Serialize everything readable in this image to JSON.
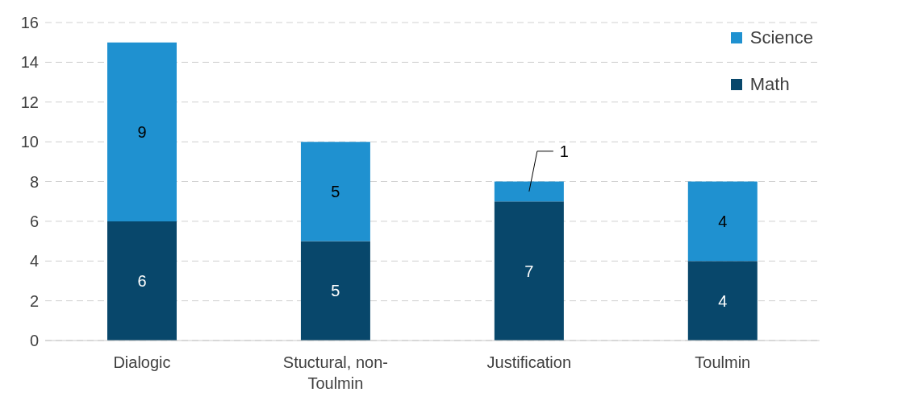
{
  "chart_data": {
    "type": "bar",
    "stacked": true,
    "categories": [
      "Dialogic",
      "Stuctural, non-Toulmin",
      "Justification",
      "Toulmin"
    ],
    "series": [
      {
        "name": "Math",
        "color": "#08476b",
        "values": [
          6,
          5,
          7,
          4
        ]
      },
      {
        "name": "Science",
        "color": "#1f91d0",
        "values": [
          9,
          5,
          1,
          4
        ]
      }
    ],
    "ylim": [
      0,
      16
    ],
    "yticks": [
      0,
      2,
      4,
      6,
      8,
      10,
      12,
      14,
      16
    ],
    "grid": "y",
    "legend": "top right",
    "data_labels": true
  }
}
